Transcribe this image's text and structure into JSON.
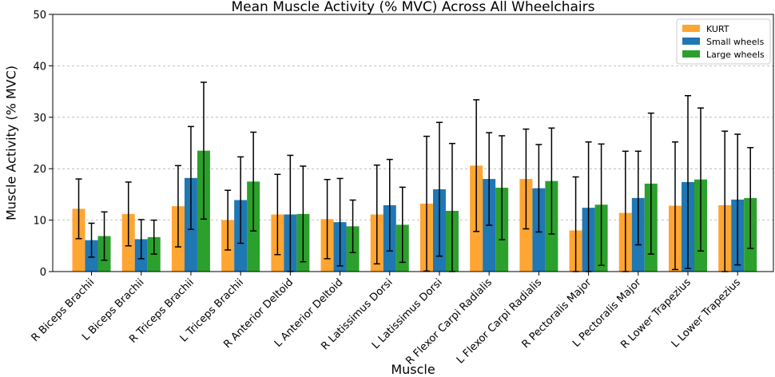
{
  "chart_data": {
    "type": "bar",
    "title": "Mean Muscle Activity (% MVC) Across All Wheelchairs",
    "xlabel": "Muscle",
    "ylabel": "Muscle Activity (% MVC)",
    "ylim": [
      0,
      50
    ],
    "yticks": [
      0,
      10,
      20,
      30,
      40,
      50
    ],
    "grid": "horizontal dashed",
    "legend_position": "top-right",
    "categories": [
      "R Biceps Brachii",
      "L Biceps Brachii",
      "R Triceps Brachii",
      "L Triceps Brachii",
      "R Anterior Deltoid",
      "L Anterior Deltoid",
      "R Latissimus Dorsi",
      "L Latissimus Dorsi",
      "R Flexor Carpi Radialis",
      "L Flexor Carpi Radialis",
      "R Pectoralis Major",
      "L Pectoralis Major",
      "R Lower Trapezius",
      "L Lower Trapezius"
    ],
    "series": [
      {
        "name": "KURT",
        "color": "#ffa531",
        "values": [
          12.2,
          11.2,
          12.7,
          10.0,
          11.1,
          10.2,
          11.1,
          13.2,
          20.6,
          18.0,
          8.0,
          11.4,
          12.8,
          12.9
        ],
        "errors": [
          5.8,
          6.2,
          7.9,
          5.8,
          7.8,
          7.7,
          9.6,
          13.1,
          12.8,
          9.7,
          10.4,
          12.0,
          12.4,
          14.4
        ]
      },
      {
        "name": "Small wheels",
        "color": "#1f77b4",
        "values": [
          6.1,
          6.3,
          18.2,
          13.9,
          11.1,
          9.6,
          12.9,
          16.0,
          18.0,
          16.2,
          12.4,
          14.3,
          17.4,
          14.0
        ],
        "errors": [
          3.3,
          3.8,
          10.0,
          8.4,
          11.5,
          8.5,
          8.9,
          13.0,
          9.0,
          8.5,
          12.8,
          9.1,
          16.8,
          12.7
        ]
      },
      {
        "name": "Large wheels",
        "color": "#2ca02c",
        "values": [
          6.9,
          6.7,
          23.5,
          17.5,
          11.2,
          8.8,
          9.1,
          11.8,
          16.3,
          17.6,
          13.0,
          17.1,
          17.9,
          14.3
        ],
        "errors": [
          4.7,
          3.3,
          13.3,
          9.6,
          9.3,
          5.1,
          7.3,
          13.1,
          10.1,
          10.3,
          11.8,
          13.7,
          13.9,
          9.8
        ]
      }
    ]
  }
}
